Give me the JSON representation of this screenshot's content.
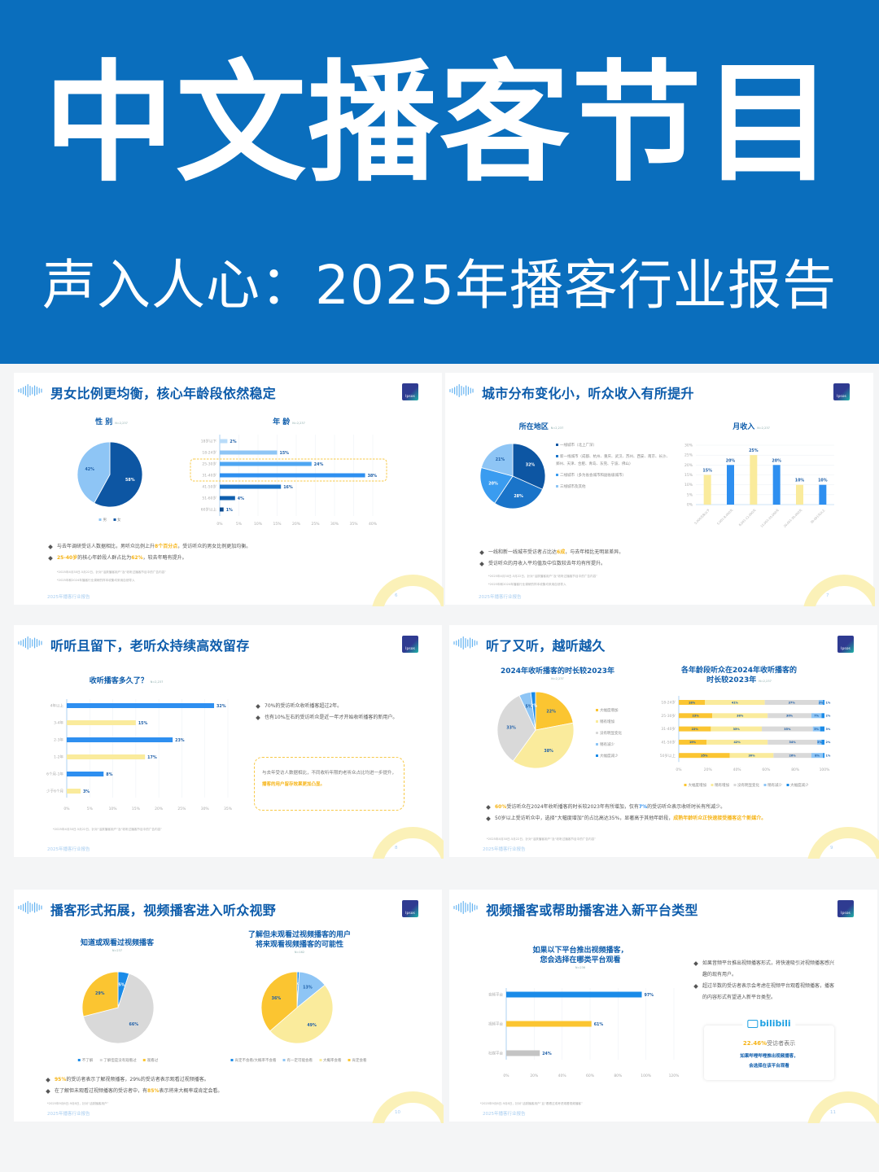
{
  "header": {
    "title": "中文播客节目",
    "subtitle": "声入人心：2025年播客行业报告",
    "bg": "#0a6ebd"
  },
  "slides": [
    {
      "title": "男女比例更均衡，核心年龄段依然稳定",
      "logo": "Ipsos",
      "charts": [
        {
          "type": "pie",
          "title": [
            "性 别"
          ],
          "n": "N=2,237",
          "slices": [
            {
              "label": "女",
              "value": 58,
              "color": "#0d56a3"
            },
            {
              "label": "男",
              "value": 42,
              "color": "#8ec5f5"
            }
          ],
          "legend": [
            {
              "label": "男",
              "color": "#8ec5f5"
            },
            {
              "label": "女",
              "color": "#0d56a3"
            }
          ]
        },
        {
          "type": "bar",
          "orientation": "horizontal",
          "title": [
            "年 龄"
          ],
          "n": "N=2,237",
          "categories": [
            "18岁以下",
            "18-24岁",
            "25-30岁",
            "31-40岁",
            "41-50岁",
            "51-60岁",
            "60岁以上"
          ],
          "values": [
            2,
            15,
            24,
            38,
            16,
            4,
            1
          ],
          "colors": [
            "#b9dcf9",
            "#8ec5f5",
            "#4ea6f2",
            "#2e8ff0",
            "#1a74c9",
            "#0f5fae",
            "#0b4a8f"
          ],
          "xlim": [
            0,
            40
          ],
          "tick_step": 5,
          "unit": "%",
          "highlight": [
            "25-30岁",
            "31-40岁"
          ]
        }
      ],
      "bullets": [
        [
          {
            "text": "与去年调研受访人数据相比，男听众比例上升"
          },
          {
            "text": "8个百分点",
            "hl": "yellow"
          },
          {
            "text": "，受访听众的男女比例更加均衡。"
          }
        ],
        [
          {
            "text": "25-40岁",
            "hl": "yellow"
          },
          {
            "text": "的核心年龄段人群占比为"
          },
          {
            "text": "62%",
            "hl": "yellow"
          },
          {
            "text": "，较去年略有提升。"
          }
        ]
      ],
      "notes": [
        "*2025年4月30日-5月22日，针对“活跃播客用户”及“收听过播客节目中的广告内容”",
        "*2025年和2024年播客行业调研的样本收集均采用自然导入"
      ],
      "footer": "2025年播客行业报告",
      "page": "6"
    },
    {
      "title": "城市分布变化小，听众收入有所提升",
      "logo": "Ipsos",
      "charts": [
        {
          "type": "pie",
          "title": [
            "所在地区"
          ],
          "n": "N=2,237",
          "slices": [
            {
              "label": "一线城市（北上广深）",
              "value": 32,
              "color": "#0d56a3"
            },
            {
              "label": "新一线城市（成都、杭州、重庆、武汉、苏州、西安、南京、长沙、郑州、天津、合肥、青岛、东莞、宁波、佛山）",
              "value": 28,
              "color": "#1a74c9"
            },
            {
              "label": "二线城市（多为省会城市和副省级城市）",
              "value": 20,
              "color": "#3a9cf0"
            },
            {
              "label": "三线城市及其他",
              "value": 21,
              "color": "#8ec5f5"
            }
          ]
        },
        {
          "type": "bar",
          "orientation": "vertical",
          "title": [
            "月收入"
          ],
          "n": "N=2,237",
          "categories": [
            "5,000元及以下",
            "5,001-8,000元",
            "8,001-12,000元",
            "12,001-20,000元",
            "20,001-30,000元",
            "30,001元以上"
          ],
          "values": [
            15,
            20,
            25,
            20,
            10,
            10
          ],
          "colors": [
            "#faeb9c",
            "#2e8ff0",
            "#faeb9c",
            "#2e8ff0",
            "#faeb9c",
            "#2e8ff0"
          ],
          "ylim": [
            0,
            30
          ],
          "tick_step": 5,
          "unit": "%"
        }
      ],
      "bullets": [
        [
          {
            "text": "一线和新一线城市受访者占比达"
          },
          {
            "text": "6成",
            "hl": "yellow"
          },
          {
            "text": "，与去年相比无明显差异。"
          }
        ],
        [
          {
            "text": "受访听众的月收入平均值及中位数较去年均有所提升。"
          }
        ]
      ],
      "notes": [
        "*2025年4月30日-5月22日，针对“活跃播客用户”及“收听过播客节目中的广告内容”",
        "*2025年和2024年播客行业调研的样本收集均采用自然导入"
      ],
      "footer": "2025年播客行业报告",
      "page": "7"
    },
    {
      "title": "听听且留下，老听众持续高效留存",
      "logo": "Ipsos",
      "charts": [
        {
          "type": "bar",
          "orientation": "horizontal",
          "title": [
            "收听播客多久了？"
          ],
          "n": "N=2,237",
          "categories": [
            "4年以上",
            "3-4年",
            "2-3年",
            "1-2年",
            "6个月-1年",
            "少于6个月"
          ],
          "values": [
            32,
            15,
            23,
            17,
            8,
            3
          ],
          "colors": [
            "#2e8ff0",
            "#faeb9c",
            "#2e8ff0",
            "#faeb9c",
            "#2e8ff0",
            "#faeb9c"
          ],
          "xlim": [
            0,
            35
          ],
          "tick_step": 5,
          "unit": "%"
        }
      ],
      "bullets": [
        [
          {
            "text": "70%的受访听众收听播客超过2年。"
          }
        ],
        [
          {
            "text": "也有10%左右的受访听众是近一年才开始收听播客的新用户。"
          }
        ]
      ],
      "callout": [
        {
          "text": "与去年受访人数据相比，不同收听年限的老听众占比均进一步提升，"
        },
        {
          "text": "播客的用户留存效果更加凸显。",
          "hl": "yellow"
        }
      ],
      "notes": [
        "*2025年4月30日-5月22日，针对“活跃播客用户”及“收听过播客节目中的广告内容”"
      ],
      "footer": "2025年播客行业报告",
      "page": "8"
    },
    {
      "title": "听了又听，越听越久",
      "logo": "Ipsos",
      "charts": [
        {
          "type": "pie",
          "title": [
            "2024年收听播客的时长较2023年"
          ],
          "n": "N=2,237",
          "slices": [
            {
              "label": "大幅度增加",
              "value": 22,
              "color": "#fbc531"
            },
            {
              "label": "稍有增加",
              "value": 38,
              "color": "#faeb9c"
            },
            {
              "label": "没有明显变化",
              "value": 33,
              "color": "#d9d9d9"
            },
            {
              "label": "稍有减少",
              "value": 5,
              "color": "#8ec5f5"
            },
            {
              "label": "大幅度减少",
              "value": 2,
              "color": "#1a8be8"
            }
          ]
        },
        {
          "type": "stacked-bar",
          "orientation": "horizontal",
          "title": [
            "各年龄段听众在2024年收听播客的",
            "时长较2023年"
          ],
          "n": "N=2,237",
          "categories": [
            "18-24岁",
            "25-30岁",
            "31-40岁",
            "41-50岁",
            "50岁以上"
          ],
          "series": [
            {
              "name": "大幅度增加",
              "color": "#fbc531",
              "values": [
                18,
                23,
                22,
                19,
                35
              ]
            },
            {
              "name": "稍有增加",
              "color": "#faeb9c",
              "values": [
                41,
                38,
                35,
                42,
                30
              ]
            },
            {
              "name": "没有明显变化",
              "color": "#d9d9d9",
              "values": [
                37,
                30,
                35,
                34,
                26
              ]
            },
            {
              "name": "稍有减少",
              "color": "#8ec5f5",
              "values": [
                3,
                7,
                5,
                3,
                8
              ]
            },
            {
              "name": "大幅度减少",
              "color": "#1a8be8",
              "values": [
                1,
                2,
                3,
                2,
                1
              ]
            }
          ],
          "xlim": [
            0,
            100
          ],
          "tick_step": 20,
          "unit": "%"
        }
      ],
      "bullets": [
        [
          {
            "text": "60%",
            "hl": "yellow"
          },
          {
            "text": "受访听众在2024年收听播客的时长较2023年有所增加，仅有"
          },
          {
            "text": "7%",
            "hl": "blue"
          },
          {
            "text": "的受访听众表示收听时长有所减少。"
          }
        ],
        [
          {
            "text": "50岁以上受访听众中，选择“大幅度增加”的占比高达35%，显著高于其他年龄段，"
          },
          {
            "text": "成熟年龄听众正快速接受播客这个新媒介。",
            "hl": "yellow"
          }
        ]
      ],
      "notes": [
        "*2025年4月30日-5月22日，针对“活跃播客用户”及“收听过播客节目中的广告内容”"
      ],
      "footer": "2025年播客行业报告",
      "page": "9"
    },
    {
      "title": "播客形式拓展，视频播客进入听众视野",
      "logo": "Ipsos",
      "charts": [
        {
          "type": "pie",
          "title": [
            "知道或观看过视频播客"
          ],
          "n": "N=237",
          "slices": [
            {
              "label": "不了解",
              "value": 5,
              "color": "#1a8be8"
            },
            {
              "label": "了解但是没有观看过",
              "value": 66,
              "color": "#d9d9d9"
            },
            {
              "label": "观看过",
              "value": 29,
              "color": "#fbc531"
            }
          ]
        },
        {
          "type": "pie",
          "title": [
            "了解但未观看过视频播客的用户",
            "将来观看视频播客的可能性"
          ],
          "n": "N=162",
          "slices": [
            {
              "label": "肯定不会看/大概率不会看",
              "value": 1,
              "color": "#1a8be8"
            },
            {
              "label": "有一定可能会看",
              "value": 13,
              "color": "#8ec5f5"
            },
            {
              "label": "大概率会看",
              "value": 49,
              "color": "#faeb9c"
            },
            {
              "label": "肯定会看",
              "value": 36,
              "color": "#fbc531"
            }
          ]
        }
      ],
      "bullets": [
        [
          {
            "text": "95%",
            "hl": "yellow"
          },
          {
            "text": "的受访者表示了解视频播客，29%的受访者表示观看过视频播客。"
          }
        ],
        [
          {
            "text": "在了解但未观看过视频播客的受访者中，有"
          },
          {
            "text": "85%",
            "hl": "yellow"
          },
          {
            "text": "表示将来大概率或肯定会看。"
          }
        ]
      ],
      "notes": [
        "*2025年9月6日-9月8日，针对“活跃播客用户”"
      ],
      "footer": "2025年播客行业报告",
      "page": "10"
    },
    {
      "title": "视频播客或帮助播客进入新平台类型",
      "logo": "Ipsos",
      "charts": [
        {
          "type": "bar",
          "orientation": "horizontal",
          "title": [
            "如果以下平台推出视频播客，",
            "您会选择在哪类平台观看"
          ],
          "n": "N=236",
          "categories": [
            "音频平台",
            "视频平台",
            "社媒平台"
          ],
          "values": [
            97,
            61,
            24
          ],
          "colors": [
            "#1a8be8",
            "#fbc531",
            "#c4c4c4"
          ],
          "xlim": [
            0,
            120
          ],
          "tick_step": 20,
          "unit": "%"
        }
      ],
      "bullets": [
        [
          {
            "text": "如果音频平台推出视频播客形式，将快速吸引对视频播客感兴趣的现有用户。"
          }
        ],
        [
          {
            "text": "超过半数的受访者表示会考虑在视频平台观看视频播客，播客的内容形式有望进入新平台类型。"
          }
        ]
      ],
      "bilibili": {
        "logo": "bilibili",
        "stat": "22.46%",
        "stat_suffix": "受访者表示",
        "line1": "如果哔哩哔哩推出视频播客，",
        "line2": "会选择在该平台观看"
      },
      "notes": [
        "*2025年9月6日-9月8日，针对“活跃播客用户”且“看看过或考虑观看视频播客”"
      ],
      "footer": "2025年播客行业报告",
      "page": "11"
    }
  ]
}
